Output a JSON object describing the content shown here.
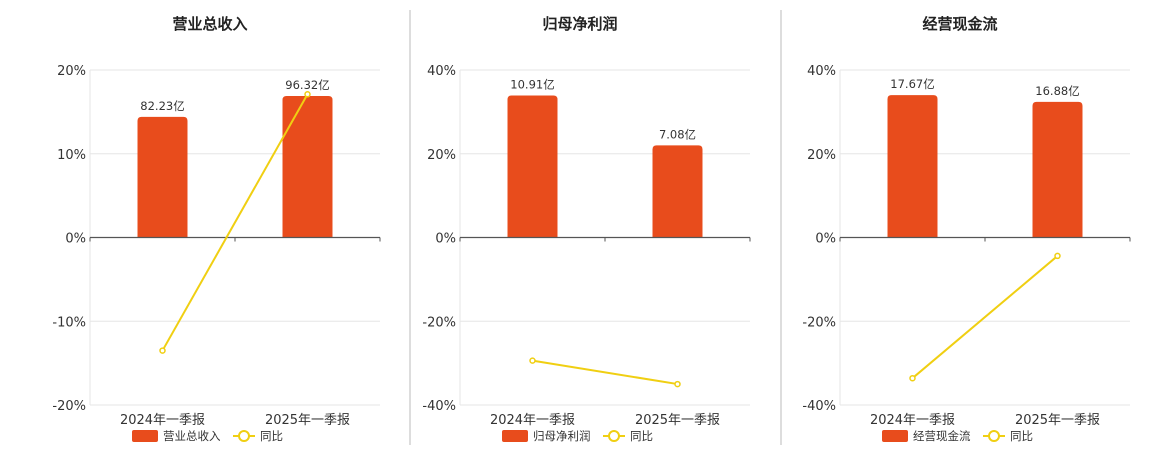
{
  "colors": {
    "bar": "#e84c1c",
    "line": "#f0cf12",
    "divider": "#bbbbbb",
    "grid": "#e6e6e6",
    "axis": "#555555"
  },
  "legend_line_label": "同比",
  "chart_data": [
    {
      "type": "bar",
      "title": "营业总收入",
      "categories": [
        "2024年一季报",
        "2025年一季报"
      ],
      "series": [
        {
          "name": "营业总收入",
          "type": "bar",
          "values": [
            14.4,
            16.9
          ],
          "data_labels": [
            "82.23亿",
            "96.32亿"
          ]
        },
        {
          "name": "同比",
          "type": "line",
          "values": [
            -13.5,
            17.1
          ]
        }
      ],
      "ylim": [
        -20,
        20
      ],
      "yticks": [
        -20,
        -10,
        0,
        10,
        20
      ],
      "ytick_labels": [
        "-20%",
        "-10%",
        "0%",
        "10%",
        "20%"
      ],
      "grid": true,
      "legend_position": "bottom"
    },
    {
      "type": "bar",
      "title": "归母净利润",
      "categories": [
        "2024年一季报",
        "2025年一季报"
      ],
      "series": [
        {
          "name": "归母净利润",
          "type": "bar",
          "values": [
            33.9,
            22.0
          ],
          "data_labels": [
            "10.91亿",
            "7.08亿"
          ]
        },
        {
          "name": "同比",
          "type": "line",
          "values": [
            -29.4,
            -35.0
          ]
        }
      ],
      "ylim": [
        -40,
        40
      ],
      "yticks": [
        -40,
        -20,
        0,
        20,
        40
      ],
      "ytick_labels": [
        "-40%",
        "-20%",
        "0%",
        "20%",
        "40%"
      ],
      "grid": true,
      "legend_position": "bottom"
    },
    {
      "type": "bar",
      "title": "经营现金流",
      "categories": [
        "2024年一季报",
        "2025年一季报"
      ],
      "series": [
        {
          "name": "经营现金流",
          "type": "bar",
          "values": [
            34.0,
            32.4
          ],
          "data_labels": [
            "17.67亿",
            "16.88亿"
          ]
        },
        {
          "name": "同比",
          "type": "line",
          "values": [
            -33.6,
            -4.4
          ]
        }
      ],
      "ylim": [
        -40,
        40
      ],
      "yticks": [
        -40,
        -20,
        0,
        20,
        40
      ],
      "ytick_labels": [
        "-40%",
        "-20%",
        "0%",
        "20%",
        "40%"
      ],
      "grid": true,
      "legend_position": "bottom"
    }
  ]
}
